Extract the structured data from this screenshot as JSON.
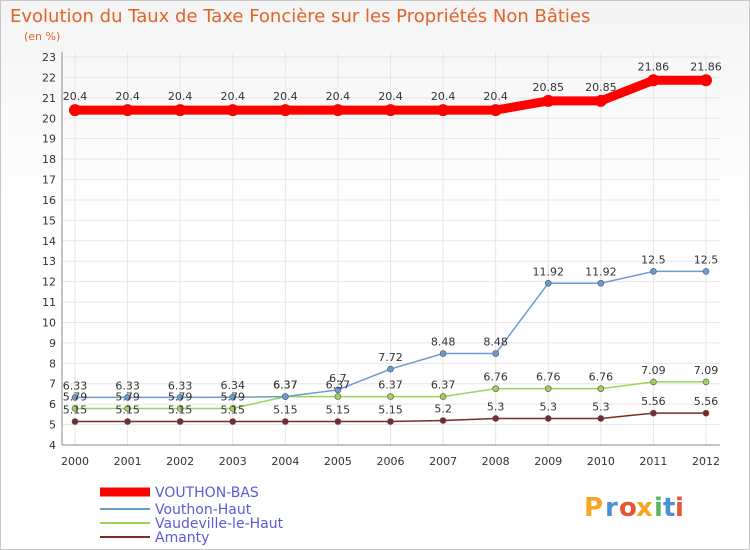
{
  "chart_data": {
    "type": "line",
    "title": "Evolution du Taux de Taxe Foncière sur les Propriétés Non Bâties",
    "subtitle": "(en %)",
    "xlabel": "",
    "ylabel": "",
    "x": [
      "2000",
      "2001",
      "2002",
      "2003",
      "2004",
      "2005",
      "2006",
      "2007",
      "2008",
      "2009",
      "2010",
      "2011",
      "2012"
    ],
    "ylim": [
      4,
      23
    ],
    "yticks": [
      "4",
      "5",
      "6",
      "7",
      "8",
      "9",
      "10",
      "11",
      "12",
      "13",
      "14",
      "15",
      "16",
      "17",
      "18",
      "19",
      "20",
      "21",
      "22",
      "23"
    ],
    "series": [
      {
        "name": "VOUTHON-BAS",
        "color": "#ff0000",
        "values": [
          20.4,
          20.4,
          20.4,
          20.4,
          20.4,
          20.4,
          20.4,
          20.4,
          20.4,
          20.85,
          20.85,
          21.86,
          21.86
        ],
        "labels": [
          "20.4",
          "20.4",
          "20.4",
          "20.4",
          "20.4",
          "20.4",
          "20.4",
          "20.4",
          "20.4",
          "20.85",
          "20.85",
          "21.86",
          "21.86"
        ]
      },
      {
        "name": "Vouthon-Haut",
        "color": "#6b9bd1",
        "values": [
          6.33,
          6.33,
          6.33,
          6.34,
          6.37,
          6.7,
          7.72,
          8.48,
          8.48,
          11.92,
          11.92,
          12.5,
          12.5
        ],
        "labels": [
          "6.33",
          "6.33",
          "6.33",
          "6.34",
          "6.37",
          "6.7",
          "7.72",
          "8.48",
          "8.48",
          "11.92",
          "11.92",
          "12.5",
          "12.5"
        ]
      },
      {
        "name": "Vaudeville-le-Haut",
        "color": "#9ed35a",
        "values": [
          5.79,
          5.79,
          5.79,
          5.79,
          6.37,
          6.37,
          6.37,
          6.37,
          6.76,
          6.76,
          6.76,
          7.09,
          7.09
        ],
        "labels": [
          "5.79",
          "5.79",
          "5.79",
          "5.79",
          "6.37",
          "6.37",
          "6.37",
          "6.37",
          "6.76",
          "6.76",
          "6.76",
          "7.09",
          "7.09"
        ]
      },
      {
        "name": "Amanty",
        "color": "#7a2a2a",
        "values": [
          5.15,
          5.15,
          5.15,
          5.15,
          5.15,
          5.15,
          5.15,
          5.2,
          5.3,
          5.3,
          5.3,
          5.56,
          5.56
        ],
        "labels": [
          "5.15",
          "5.15",
          "5.15",
          "5.15",
          "5.15",
          "5.15",
          "5.15",
          "5.2",
          "5.3",
          "5.3",
          "5.3",
          "5.56",
          "5.56"
        ]
      }
    ],
    "legend_position": "bottom-left"
  },
  "logo": {
    "letters": [
      "P",
      "r",
      "o",
      "x",
      "i",
      "t",
      "i"
    ],
    "colors": [
      "#f5a623",
      "#4a90d9",
      "#e8543a",
      "#f5a623",
      "#5cb85c",
      "#4a90d9",
      "#e8543a"
    ]
  },
  "colors": {
    "title": "#e0632a",
    "grid": "#e6e6e6",
    "axis": "#888888",
    "legend_text": "#5b5bd6"
  }
}
